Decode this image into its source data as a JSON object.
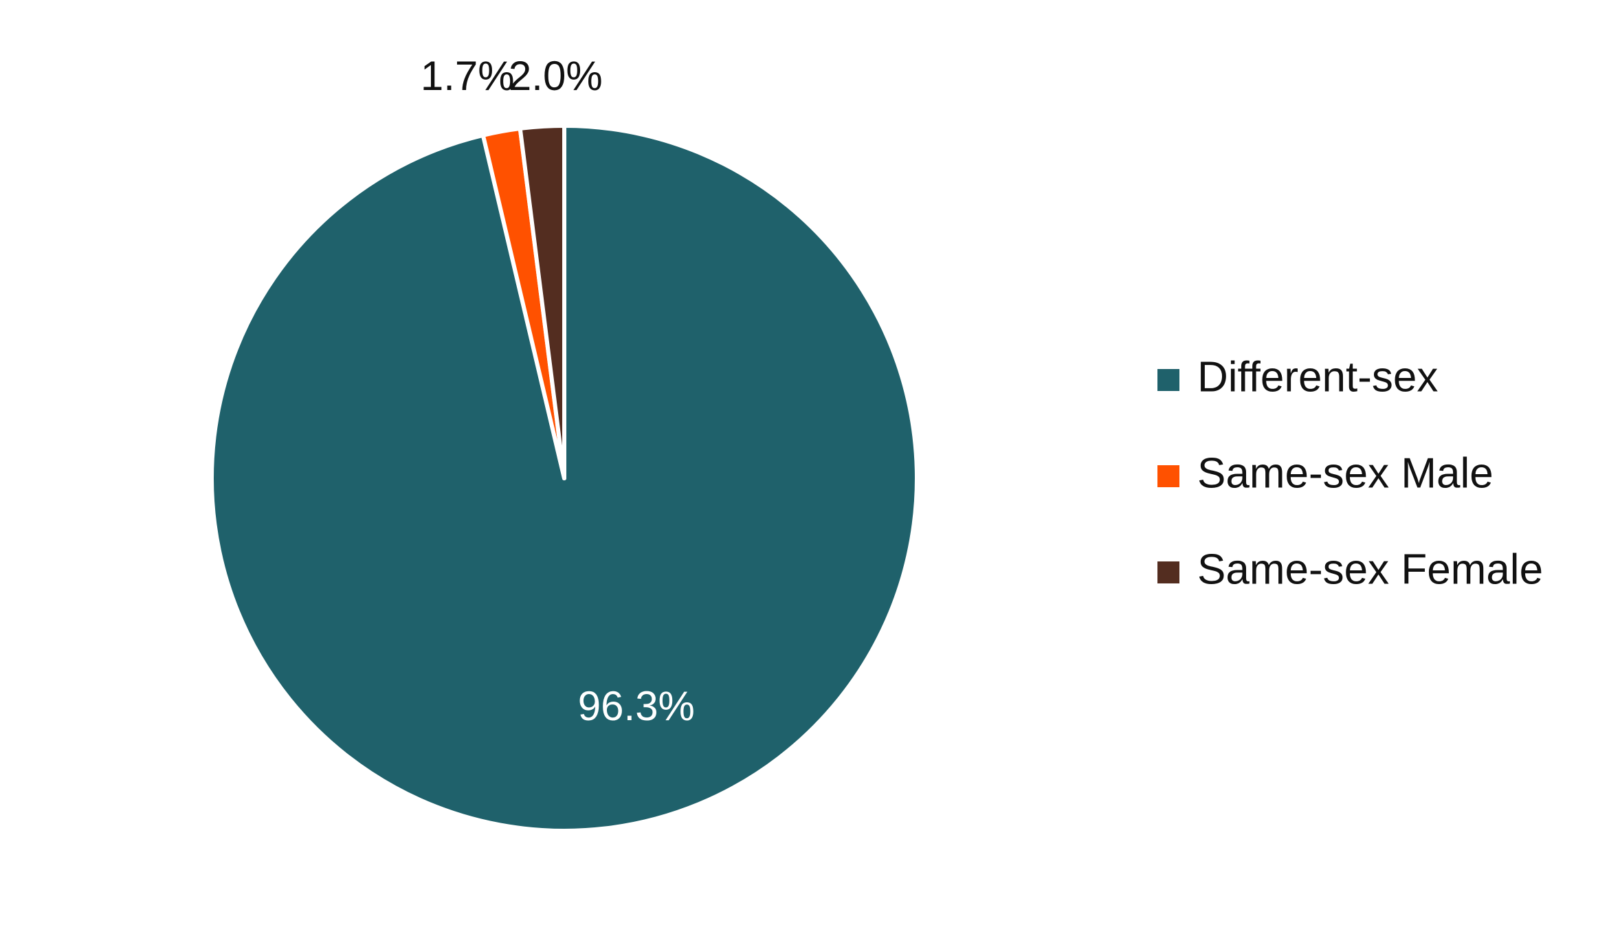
{
  "chart_data": {
    "type": "pie",
    "categories": [
      "Different-sex",
      "Same-sex Male",
      "Same-sex Female"
    ],
    "values": [
      96.3,
      1.7,
      2.0
    ],
    "value_labels": [
      "96.3%",
      "1.7%",
      "2.0%"
    ],
    "colors": [
      "#1f616b",
      "#ff5100",
      "#532d20"
    ],
    "legend": "right"
  }
}
